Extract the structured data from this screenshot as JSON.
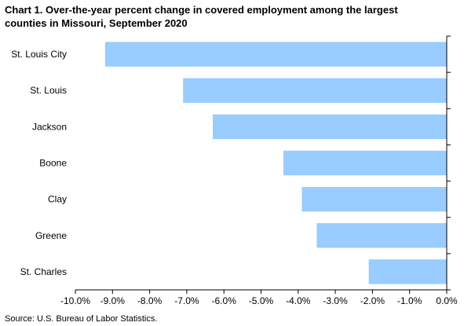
{
  "chart_data": {
    "type": "bar",
    "orientation": "horizontal",
    "title_line1": "Chart 1. Over-the-year percent change in covered employment among the largest",
    "title_line2": "counties  in Missouri,  September 2020",
    "categories": [
      "St. Louis City",
      "St. Louis",
      "Jackson",
      "Boone",
      "Clay",
      "Greene",
      "St. Charles"
    ],
    "values": [
      -9.2,
      -7.1,
      -6.3,
      -4.4,
      -3.9,
      -3.5,
      -2.1
    ],
    "xlim": [
      -10.0,
      0.0
    ],
    "xticks": [
      -10,
      -9,
      -8,
      -7,
      -6,
      -5,
      -4,
      -3,
      -2,
      -1,
      0
    ],
    "xtick_labels": [
      "-10.0%",
      "-9.0%",
      "-8.0%",
      "-7.0%",
      "-6.0%",
      "-5.0%",
      "-4.0%",
      "-3.0%",
      "-2.0%",
      "-1.0%",
      "0.0%"
    ],
    "bar_color": "#99ccff",
    "grid": false,
    "source": "Source: U.S. Bureau of Labor Statistics."
  }
}
